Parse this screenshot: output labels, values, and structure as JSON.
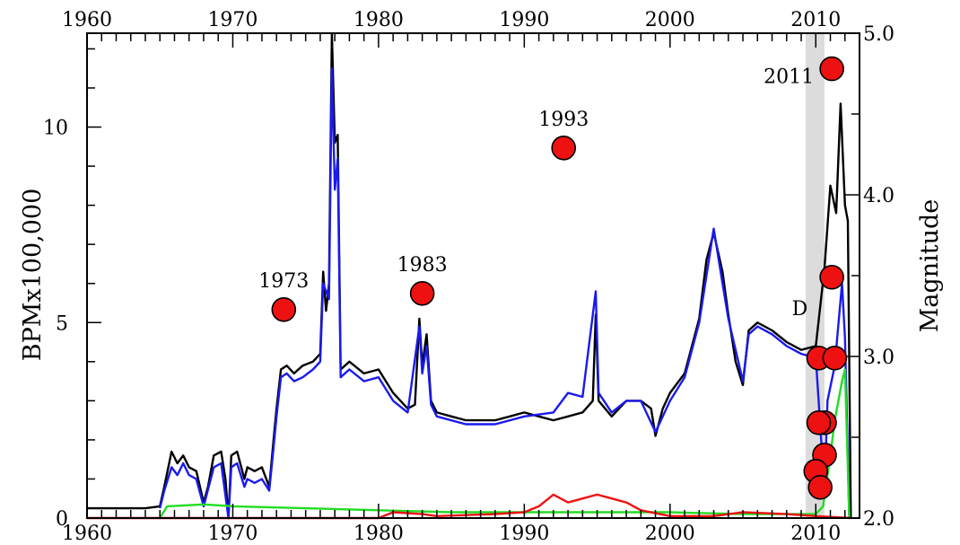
{
  "chart_data": {
    "type": "line",
    "title": "",
    "ylabel": "BPMx100,000",
    "y2label": "Magnitude",
    "xlim": [
      1960,
      2013
    ],
    "ylim": [
      0,
      12.4
    ],
    "y2lim": [
      2.0,
      5.0
    ],
    "x_ticks": [
      "1960",
      "1970",
      "1980",
      "1990",
      "2000",
      "2010"
    ],
    "y_ticks": [
      "0",
      "5",
      "10"
    ],
    "y2_ticks": [
      "2.0",
      "3.0",
      "4.0",
      "5.0"
    ],
    "grid": false,
    "shaded_region": [
      2009.3,
      2010.6
    ],
    "marker_color": "#ee1111",
    "series": [
      {
        "color": "#000000",
        "points": [
          [
            1960,
            0.25
          ],
          [
            1962,
            0.25
          ],
          [
            1964,
            0.25
          ],
          [
            1965,
            0.3
          ],
          [
            1965.3,
            0.8
          ],
          [
            1965.8,
            1.7
          ],
          [
            1966.2,
            1.4
          ],
          [
            1966.6,
            1.6
          ],
          [
            1967,
            1.3
          ],
          [
            1967.5,
            1.2
          ],
          [
            1968,
            0.4
          ],
          [
            1968.3,
            0.8
          ],
          [
            1968.7,
            1.6
          ],
          [
            1969.2,
            1.7
          ],
          [
            1969.5,
            1.0
          ],
          [
            1969.7,
            0.0
          ],
          [
            1969.9,
            1.6
          ],
          [
            1970.3,
            1.7
          ],
          [
            1970.8,
            1.0
          ],
          [
            1971,
            1.3
          ],
          [
            1971.5,
            1.2
          ],
          [
            1972,
            1.3
          ],
          [
            1972.5,
            0.8
          ],
          [
            1972.8,
            2.0
          ],
          [
            1973,
            2.8
          ],
          [
            1973.3,
            3.8
          ],
          [
            1973.7,
            3.9
          ],
          [
            1974.2,
            3.7
          ],
          [
            1974.8,
            3.9
          ],
          [
            1975.5,
            4.0
          ],
          [
            1976,
            4.2
          ],
          [
            1976.2,
            6.3
          ],
          [
            1976.4,
            5.3
          ],
          [
            1976.6,
            6.0
          ],
          [
            1976.8,
            12.4
          ],
          [
            1977,
            9.6
          ],
          [
            1977.2,
            9.8
          ],
          [
            1977.4,
            3.8
          ],
          [
            1978,
            4.0
          ],
          [
            1979,
            3.7
          ],
          [
            1980,
            3.8
          ],
          [
            1981,
            3.2
          ],
          [
            1982,
            2.8
          ],
          [
            1982.5,
            2.9
          ],
          [
            1982.8,
            5.1
          ],
          [
            1983,
            3.9
          ],
          [
            1983.3,
            4.7
          ],
          [
            1983.6,
            3.0
          ],
          [
            1984,
            2.7
          ],
          [
            1985,
            2.6
          ],
          [
            1986,
            2.5
          ],
          [
            1987,
            2.5
          ],
          [
            1988,
            2.5
          ],
          [
            1989,
            2.6
          ],
          [
            1990,
            2.7
          ],
          [
            1991,
            2.6
          ],
          [
            1992,
            2.5
          ],
          [
            1993,
            2.6
          ],
          [
            1994,
            2.7
          ],
          [
            1994.7,
            3.0
          ],
          [
            1994.9,
            5.2
          ],
          [
            1995.1,
            3.0
          ],
          [
            1996,
            2.6
          ],
          [
            1997,
            3.0
          ],
          [
            1998,
            3.0
          ],
          [
            1998.7,
            2.8
          ],
          [
            1999,
            2.1
          ],
          [
            1999.5,
            2.8
          ],
          [
            2000,
            3.2
          ],
          [
            2001,
            3.7
          ],
          [
            2002,
            5.1
          ],
          [
            2002.5,
            6.6
          ],
          [
            2003,
            7.3
          ],
          [
            2003.6,
            6.3
          ],
          [
            2004,
            5.2
          ],
          [
            2004.5,
            4.0
          ],
          [
            2005,
            3.4
          ],
          [
            2005.4,
            4.8
          ],
          [
            2006,
            5.0
          ],
          [
            2007,
            4.8
          ],
          [
            2008,
            4.5
          ],
          [
            2009,
            4.3
          ],
          [
            2010,
            4.4
          ],
          [
            2010.6,
            6.4
          ],
          [
            2011,
            8.5
          ],
          [
            2011.4,
            7.8
          ],
          [
            2011.7,
            10.6
          ],
          [
            2012,
            8.0
          ],
          [
            2012.2,
            7.6
          ],
          [
            2012.4,
            0.0
          ]
        ]
      },
      {
        "color": "#1a1aee",
        "points": [
          [
            1965,
            0.25
          ],
          [
            1965.3,
            0.7
          ],
          [
            1965.8,
            1.3
          ],
          [
            1966.2,
            1.1
          ],
          [
            1966.6,
            1.4
          ],
          [
            1967,
            1.1
          ],
          [
            1967.5,
            1.0
          ],
          [
            1968,
            0.3
          ],
          [
            1968.7,
            1.3
          ],
          [
            1969.2,
            1.4
          ],
          [
            1969.7,
            0.0
          ],
          [
            1969.9,
            1.3
          ],
          [
            1970.3,
            1.4
          ],
          [
            1970.8,
            0.8
          ],
          [
            1971,
            1.0
          ],
          [
            1971.5,
            0.9
          ],
          [
            1972,
            1.0
          ],
          [
            1972.5,
            0.7
          ],
          [
            1972.8,
            1.8
          ],
          [
            1973,
            2.6
          ],
          [
            1973.3,
            3.6
          ],
          [
            1973.7,
            3.7
          ],
          [
            1974.2,
            3.5
          ],
          [
            1974.8,
            3.6
          ],
          [
            1975.5,
            3.8
          ],
          [
            1976,
            4.0
          ],
          [
            1976.2,
            6.0
          ],
          [
            1976.6,
            5.6
          ],
          [
            1976.8,
            11.5
          ],
          [
            1977,
            8.4
          ],
          [
            1977.2,
            9.2
          ],
          [
            1977.4,
            3.6
          ],
          [
            1978,
            3.8
          ],
          [
            1979,
            3.5
          ],
          [
            1980,
            3.6
          ],
          [
            1981,
            3.0
          ],
          [
            1982,
            2.7
          ],
          [
            1982.8,
            4.9
          ],
          [
            1983,
            3.7
          ],
          [
            1983.3,
            4.4
          ],
          [
            1983.6,
            2.9
          ],
          [
            1984,
            2.6
          ],
          [
            1986,
            2.4
          ],
          [
            1988,
            2.4
          ],
          [
            1990,
            2.6
          ],
          [
            1992,
            2.7
          ],
          [
            1993,
            3.2
          ],
          [
            1994,
            3.1
          ],
          [
            1994.9,
            5.8
          ],
          [
            1995.1,
            3.2
          ],
          [
            1996,
            2.7
          ],
          [
            1997,
            3.0
          ],
          [
            1998,
            3.0
          ],
          [
            1999,
            2.2
          ],
          [
            2000,
            3.0
          ],
          [
            2001,
            3.6
          ],
          [
            2002,
            5.0
          ],
          [
            2003,
            7.4
          ],
          [
            2003.6,
            6.0
          ],
          [
            2004,
            5.1
          ],
          [
            2005,
            3.5
          ],
          [
            2005.4,
            4.7
          ],
          [
            2006,
            4.9
          ],
          [
            2007,
            4.7
          ],
          [
            2008,
            4.4
          ],
          [
            2009,
            4.2
          ],
          [
            2010,
            4.1
          ],
          [
            2010.6,
            0.7
          ],
          [
            2010.8,
            3.0
          ],
          [
            2011.3,
            3.9
          ],
          [
            2011.8,
            6.0
          ],
          [
            2012,
            4.6
          ],
          [
            2012.3,
            0.0
          ]
        ]
      },
      {
        "color": "#22dd22",
        "points": [
          [
            1965,
            0.0
          ],
          [
            1965.5,
            0.3
          ],
          [
            1968,
            0.35
          ],
          [
            1970,
            0.3
          ],
          [
            1975,
            0.25
          ],
          [
            1980,
            0.2
          ],
          [
            1985,
            0.15
          ],
          [
            1990,
            0.15
          ],
          [
            1995,
            0.15
          ],
          [
            2000,
            0.15
          ],
          [
            2005,
            0.1
          ],
          [
            2010,
            0.1
          ],
          [
            2010.5,
            0.3
          ],
          [
            2011,
            1.6
          ],
          [
            2011.3,
            2.5
          ],
          [
            2011.8,
            3.5
          ],
          [
            2012,
            3.8
          ],
          [
            2012.3,
            0.0
          ]
        ]
      },
      {
        "color": "#ee1111",
        "points": [
          [
            1960,
            0.0
          ],
          [
            1980,
            0.0
          ],
          [
            1981,
            0.15
          ],
          [
            1983,
            0.1
          ],
          [
            1984,
            0.05
          ],
          [
            1988,
            0.1
          ],
          [
            1990,
            0.15
          ],
          [
            1991,
            0.3
          ],
          [
            1992,
            0.6
          ],
          [
            1993,
            0.4
          ],
          [
            1994,
            0.5
          ],
          [
            1995,
            0.6
          ],
          [
            1996,
            0.5
          ],
          [
            1997,
            0.4
          ],
          [
            1998,
            0.2
          ],
          [
            2000,
            0.05
          ],
          [
            2003,
            0.05
          ],
          [
            2005,
            0.15
          ],
          [
            2008,
            0.1
          ],
          [
            2010,
            0.05
          ],
          [
            2012.4,
            0.0
          ]
        ]
      }
    ],
    "markers": [
      {
        "x": 1973.5,
        "magnitude": 3.29,
        "label": "1973"
      },
      {
        "x": 1983.0,
        "magnitude": 3.39,
        "label": "1983"
      },
      {
        "x": 1992.7,
        "magnitude": 4.29,
        "label": "1993"
      },
      {
        "x": 2011.1,
        "magnitude": 4.78,
        "label": "2011"
      },
      {
        "x": 2011.1,
        "magnitude": 3.49,
        "label": ""
      },
      {
        "x": 2010.2,
        "magnitude": 2.99,
        "label": ""
      },
      {
        "x": 2011.3,
        "magnitude": 2.99,
        "label": ""
      },
      {
        "x": 2010.6,
        "magnitude": 2.59,
        "label": ""
      },
      {
        "x": 2010.2,
        "magnitude": 2.59,
        "label": ""
      },
      {
        "x": 2010.6,
        "magnitude": 2.39,
        "label": ""
      },
      {
        "x": 2010.0,
        "magnitude": 2.29,
        "label": ""
      },
      {
        "x": 2010.3,
        "magnitude": 2.19,
        "label": ""
      }
    ],
    "annotations": [
      {
        "text": "D",
        "x": 2008.9,
        "y": 3.3
      }
    ]
  }
}
